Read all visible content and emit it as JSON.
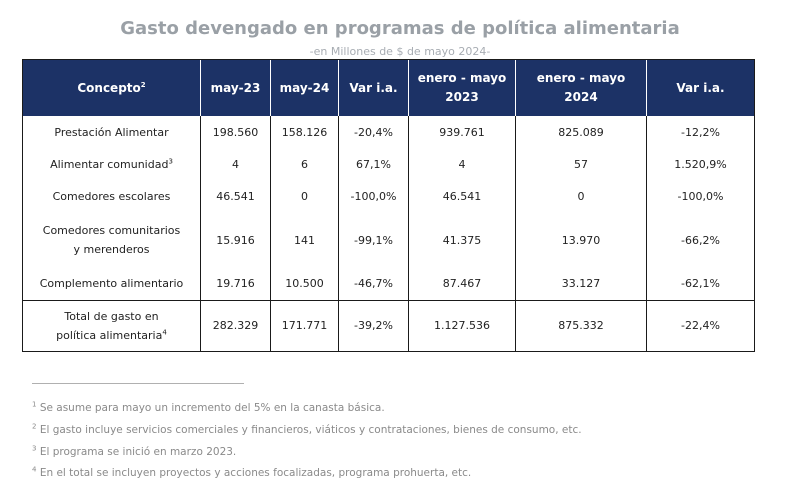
{
  "title": "Gasto devengado en programas de política alimentaria",
  "subtitle": "-en Millones de $ de mayo 2024-",
  "headers": [
    {
      "label": "Concepto",
      "sup": "2"
    },
    {
      "label": "may-23"
    },
    {
      "label": "may-24"
    },
    {
      "label": "Var i.a."
    },
    {
      "label": "enero - mayo",
      "label2": "2023"
    },
    {
      "label": "enero - mayo",
      "label2": "2024"
    },
    {
      "label": "Var i.a."
    }
  ],
  "rows": [
    {
      "concepto": "Prestación Alimentar",
      "may23": "198.560",
      "may24": "158.126",
      "var1": "-20,4%",
      "ene23": "939.761",
      "ene24": "825.089",
      "var2": "-12,2%"
    },
    {
      "concepto": "Alimentar comunidad",
      "sup": "3",
      "may23": "4",
      "may24": "6",
      "var1": "67,1%",
      "ene23": "4",
      "ene24": "57",
      "var2": "1.520,9%"
    },
    {
      "concepto": "Comedores escolares",
      "may23": "46.541",
      "may24": "0",
      "var1": "-100,0%",
      "ene23": "46.541",
      "ene24": "0",
      "var2": "-100,0%"
    },
    {
      "concepto": "Comedores comunitarios",
      "concepto2": "y merenderos",
      "may23": "15.916",
      "may24": "141",
      "var1": "-99,1%",
      "ene23": "41.375",
      "ene24": "13.970",
      "var2": "-66,2%"
    },
    {
      "concepto": "Complemento alimentario",
      "may23": "19.716",
      "may24": "10.500",
      "var1": "-46,7%",
      "ene23": "87.467",
      "ene24": "33.127",
      "var2": "-62,1%"
    }
  ],
  "total": {
    "concepto": "Total de gasto en",
    "concepto2": "política alimentaria",
    "sup": "4",
    "may23": "282.329",
    "may24": "171.771",
    "var1": "-39,2%",
    "ene23": "1.127.536",
    "ene24": "875.332",
    "var2": "-22,4%"
  },
  "footnotes": [
    {
      "num": "1",
      "text": "Se asume para mayo un incremento del 5% en la canasta básica."
    },
    {
      "num": "2",
      "text": "El gasto incluye servicios comerciales y financieros, viáticos y contrataciones, bienes de consumo, etc."
    },
    {
      "num": "3",
      "text": "El programa se inició en marzo 2023."
    },
    {
      "num": "4",
      "text": "En el total se incluyen proyectos y acciones focalizadas, programa prohuerta, etc."
    }
  ]
}
